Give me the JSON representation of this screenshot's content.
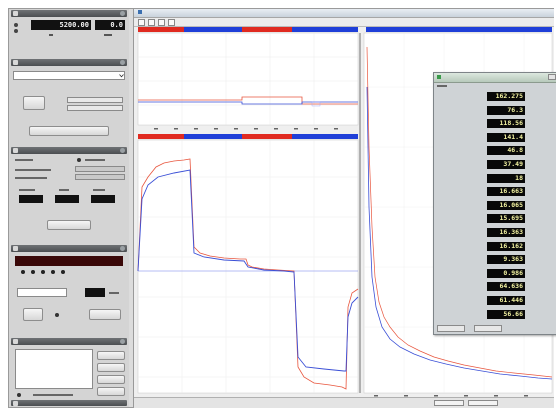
{
  "left_panel": {
    "sections": [
      {
        "id": "s1"
      },
      {
        "id": "s2"
      },
      {
        "id": "s3"
      },
      {
        "id": "s4"
      },
      {
        "id": "s5"
      },
      {
        "id": "s6"
      }
    ],
    "display_main_value": "5200.00",
    "display_secondary_value": "0.0",
    "recording_display": "",
    "numeric_display": "",
    "colors": {
      "panel": "#d4d4d4",
      "header": "#5b5e61",
      "lcd": "#111111",
      "red_lcd": "#3a0808"
    }
  },
  "plot_window": {
    "colors": {
      "red_series": "#e8553d",
      "blue_series": "#3a4fd6",
      "red_tab": "#e02a20",
      "blue_tab": "#1f3fd8"
    }
  },
  "overlay": {
    "rows": [
      {
        "label": "",
        "value": "162.275",
        "unit": ""
      },
      {
        "label": "",
        "value": "76.3",
        "unit": ""
      },
      {
        "label": "",
        "value": "118.56",
        "unit": ""
      },
      {
        "label": "",
        "value": "141.4",
        "unit": ""
      },
      {
        "label": "",
        "value": "46.8",
        "unit": ""
      },
      {
        "label": "",
        "value": "37.49",
        "unit": ""
      },
      {
        "label": "",
        "value": "18",
        "unit": ""
      },
      {
        "label": "",
        "value": "16.663",
        "unit": ""
      },
      {
        "label": "",
        "value": "16.065",
        "unit": ""
      },
      {
        "label": "",
        "value": "15.695",
        "unit": ""
      },
      {
        "label": "",
        "value": "16.363",
        "unit": ""
      },
      {
        "label": "",
        "value": "16.162",
        "unit": ""
      },
      {
        "label": "",
        "value": "9.363",
        "unit": ""
      },
      {
        "label": "",
        "value": "0.986",
        "unit": ""
      },
      {
        "label": "",
        "value": "64.636",
        "unit": ""
      },
      {
        "label": "",
        "value": "61.446",
        "unit": ""
      },
      {
        "label": "",
        "value": "56.66",
        "unit": ""
      }
    ]
  }
}
